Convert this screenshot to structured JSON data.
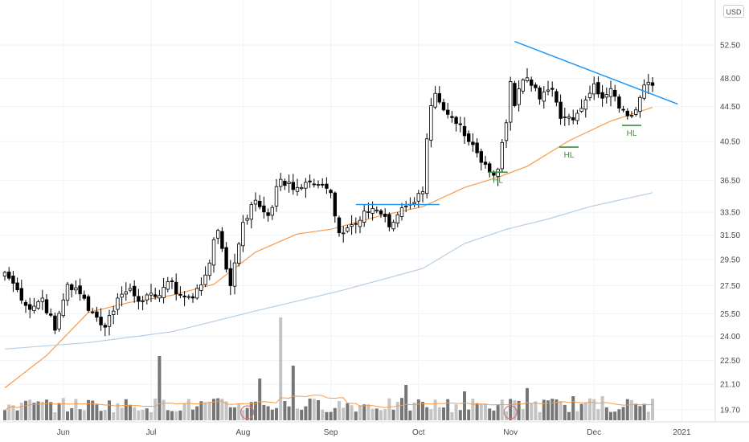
{
  "currency_button": "USD",
  "chart_data": {
    "type": "candlestick",
    "title": "",
    "y_scale": "log",
    "y_ticks": [
      "52.50",
      "48.00",
      "44.50",
      "40.50",
      "36.50",
      "33.50",
      "31.50",
      "29.50",
      "27.50",
      "25.50",
      "24.00",
      "22.50",
      "21.10",
      "19.70"
    ],
    "x_ticks": [
      {
        "label": "Jun",
        "bar": 14
      },
      {
        "label": "Jul",
        "bar": 35
      },
      {
        "label": "Aug",
        "bar": 57
      },
      {
        "label": "Sep",
        "bar": 78
      },
      {
        "label": "Oct",
        "bar": 99
      },
      {
        "label": "Nov",
        "bar": 121
      },
      {
        "label": "Dec",
        "bar": 141
      },
      {
        "label": "2021",
        "bar": 162
      }
    ],
    "ohlc_anchors": [
      [
        0,
        28.5
      ],
      [
        3,
        27.2
      ],
      [
        6,
        25.8
      ],
      [
        9,
        26.6
      ],
      [
        12,
        24.4
      ],
      [
        15,
        27.6
      ],
      [
        18,
        26.9
      ],
      [
        21,
        25.6
      ],
      [
        24,
        24.6
      ],
      [
        27,
        26.6
      ],
      [
        30,
        27.3
      ],
      [
        33,
        26.4
      ],
      [
        36,
        26.7
      ],
      [
        39,
        27.8
      ],
      [
        42,
        26.8
      ],
      [
        45,
        26.6
      ],
      [
        48,
        28.3
      ],
      [
        51,
        31.9
      ],
      [
        54,
        27.5
      ],
      [
        57,
        32.6
      ],
      [
        60,
        34.6
      ],
      [
        63,
        33.2
      ],
      [
        66,
        36.6
      ],
      [
        69,
        35.6
      ],
      [
        72,
        36.3
      ],
      [
        75,
        36.1
      ],
      [
        78,
        35.3
      ],
      [
        80,
        31.7
      ],
      [
        83,
        32.4
      ],
      [
        86,
        33.6
      ],
      [
        89,
        33.7
      ],
      [
        92,
        32.2
      ],
      [
        95,
        33.9
      ],
      [
        98,
        34.4
      ],
      [
        100,
        35.4
      ],
      [
        101,
        40.8
      ],
      [
        102,
        44.6
      ],
      [
        103,
        46.1
      ],
      [
        105,
        44.1
      ],
      [
        107,
        43.2
      ],
      [
        109,
        42.4
      ],
      [
        111,
        40.5
      ],
      [
        113,
        39.3
      ],
      [
        115,
        38.1
      ],
      [
        117,
        37.0
      ],
      [
        118,
        37.6
      ],
      [
        120,
        42.6
      ],
      [
        121,
        47.6
      ],
      [
        122,
        44.6
      ],
      [
        124,
        47.8
      ],
      [
        126,
        47.1
      ],
      [
        128,
        45.4
      ],
      [
        131,
        46.6
      ],
      [
        133,
        43.1
      ],
      [
        135,
        43.3
      ],
      [
        137,
        43.7
      ],
      [
        139,
        45.3
      ],
      [
        141,
        47.3
      ],
      [
        143,
        45.5
      ],
      [
        145,
        46.7
      ],
      [
        147,
        44.3
      ],
      [
        149,
        43.4
      ],
      [
        151,
        44.1
      ],
      [
        152,
        45.6
      ],
      [
        154,
        47.5
      ],
      [
        155,
        47.1
      ]
    ],
    "series": [
      {
        "name": "",
        "type": "line",
        "color": "#f59a4a",
        "points": [
          [
            0,
            20.9
          ],
          [
            10,
            22.8
          ],
          [
            20,
            25.6
          ],
          [
            30,
            26.3
          ],
          [
            40,
            26.8
          ],
          [
            50,
            27.6
          ],
          [
            60,
            30.1
          ],
          [
            70,
            31.6
          ],
          [
            78,
            32.0
          ],
          [
            90,
            33.2
          ],
          [
            100,
            34.0
          ],
          [
            110,
            35.8
          ],
          [
            118,
            36.8
          ],
          [
            125,
            37.9
          ],
          [
            135,
            40.6
          ],
          [
            145,
            42.8
          ],
          [
            155,
            44.4
          ]
        ]
      },
      {
        "name": "",
        "type": "line",
        "color": "#b7cde2",
        "points": [
          [
            0,
            23.2
          ],
          [
            20,
            23.6
          ],
          [
            40,
            24.3
          ],
          [
            60,
            25.7
          ],
          [
            80,
            27.1
          ],
          [
            100,
            28.8
          ],
          [
            110,
            30.8
          ],
          [
            120,
            32.0
          ],
          [
            130,
            32.9
          ],
          [
            140,
            34.0
          ],
          [
            155,
            35.3
          ]
        ]
      }
    ],
    "trendlines": [
      {
        "name": "",
        "color": "#2196f3",
        "from": [
          84,
          34.2
        ],
        "to": [
          104,
          34.2
        ]
      },
      {
        "name": "",
        "color": "#2196f3",
        "from": [
          122,
          53.0
        ],
        "to": [
          161,
          44.8
        ]
      }
    ],
    "annotations": [
      {
        "label": "HL",
        "color": "#388e3c",
        "bar": 118,
        "level": 37.3
      },
      {
        "label": "HL",
        "color": "#388e3c",
        "bar": 135,
        "level": 39.9
      },
      {
        "label": "HL",
        "color": "#388e3c",
        "bar": 150,
        "level": 42.3
      }
    ],
    "volume": {
      "highlight_bars": [
        58,
        121
      ],
      "series_color": "#f59a4a"
    },
    "grid": true,
    "legend": "none"
  }
}
